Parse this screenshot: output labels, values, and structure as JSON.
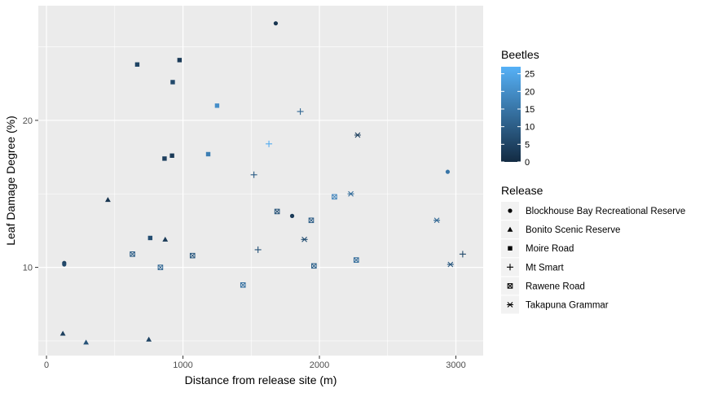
{
  "chart_data": {
    "type": "scatter",
    "xlabel": "Distance from release site (m)",
    "ylabel": "Leaf Damage Degree (%)",
    "xlim": [
      -60,
      3200
    ],
    "ylim": [
      4.0,
      27.8
    ],
    "x_ticks": [
      0,
      1000,
      2000,
      3000
    ],
    "x_tick_labels": [
      "0",
      "1000",
      "2000",
      "3000"
    ],
    "y_ticks": [
      10,
      20
    ],
    "y_tick_labels": [
      "10",
      "20"
    ],
    "grid": true,
    "panel_background": "#EBEBEB",
    "color_scale": {
      "title": "Beetles",
      "min": 0,
      "max": 27,
      "ticks": [
        0,
        5,
        10,
        15,
        20,
        25
      ],
      "tick_labels": [
        "0",
        "5",
        "10",
        "15",
        "20",
        "25"
      ],
      "low_color": "#132B43",
      "high_color": "#56B1F7"
    },
    "shape_legend": {
      "title": "Release",
      "entries": [
        {
          "label": "Blockhouse Bay Recreational Reserve",
          "shape": "circle"
        },
        {
          "label": "Bonito Scenic Reserve",
          "shape": "triangle"
        },
        {
          "label": "Moire Road",
          "shape": "square"
        },
        {
          "label": "Mt Smart",
          "shape": "plus"
        },
        {
          "label": "Rawene Road",
          "shape": "square-cross"
        },
        {
          "label": "Takapuna Grammar",
          "shape": "asterisk"
        }
      ]
    },
    "series": [
      {
        "name": "Blockhouse Bay Recreational Reserve",
        "shape": "circle",
        "points": [
          {
            "x": 1680,
            "y": 26.6,
            "beetles": 2
          },
          {
            "x": 130,
            "y": 10.3,
            "beetles": 4
          },
          {
            "x": 130,
            "y": 10.2,
            "beetles": 6
          },
          {
            "x": 1800,
            "y": 13.5,
            "beetles": 3
          },
          {
            "x": 2940,
            "y": 16.5,
            "beetles": 15
          }
        ]
      },
      {
        "name": "Bonito Scenic Reserve",
        "shape": "triangle",
        "points": [
          {
            "x": 450,
            "y": 14.6,
            "beetles": 2
          },
          {
            "x": 120,
            "y": 5.5,
            "beetles": 4
          },
          {
            "x": 290,
            "y": 4.9,
            "beetles": 8
          },
          {
            "x": 750,
            "y": 5.1,
            "beetles": 5
          },
          {
            "x": 870,
            "y": 11.9,
            "beetles": 3
          }
        ]
      },
      {
        "name": "Moire Road",
        "shape": "square",
        "points": [
          {
            "x": 665,
            "y": 23.8,
            "beetles": 5
          },
          {
            "x": 975,
            "y": 24.1,
            "beetles": 3
          },
          {
            "x": 925,
            "y": 22.6,
            "beetles": 6
          },
          {
            "x": 1250,
            "y": 21.0,
            "beetles": 20
          },
          {
            "x": 1185,
            "y": 17.7,
            "beetles": 17
          },
          {
            "x": 865,
            "y": 17.4,
            "beetles": 4
          },
          {
            "x": 920,
            "y": 17.6,
            "beetles": 3
          },
          {
            "x": 760,
            "y": 12.0,
            "beetles": 7
          }
        ]
      },
      {
        "name": "Mt Smart",
        "shape": "plus",
        "points": [
          {
            "x": 1860,
            "y": 20.6,
            "beetles": 12
          },
          {
            "x": 1630,
            "y": 18.4,
            "beetles": 26
          },
          {
            "x": 1520,
            "y": 16.3,
            "beetles": 10
          },
          {
            "x": 1550,
            "y": 11.2,
            "beetles": 8
          },
          {
            "x": 3050,
            "y": 10.9,
            "beetles": 6
          }
        ]
      },
      {
        "name": "Rawene Road",
        "shape": "square-cross",
        "points": [
          {
            "x": 630,
            "y": 10.9,
            "beetles": 10
          },
          {
            "x": 835,
            "y": 10.0,
            "beetles": 12
          },
          {
            "x": 1070,
            "y": 10.8,
            "beetles": 9
          },
          {
            "x": 1440,
            "y": 8.8,
            "beetles": 14
          },
          {
            "x": 1690,
            "y": 13.8,
            "beetles": 8
          },
          {
            "x": 1940,
            "y": 13.2,
            "beetles": 10
          },
          {
            "x": 1960,
            "y": 10.1,
            "beetles": 11
          },
          {
            "x": 2110,
            "y": 14.8,
            "beetles": 18
          },
          {
            "x": 2270,
            "y": 10.5,
            "beetles": 13
          }
        ]
      },
      {
        "name": "Takapuna Grammar",
        "shape": "asterisk",
        "points": [
          {
            "x": 2280,
            "y": 19.0,
            "beetles": 4
          },
          {
            "x": 2230,
            "y": 15.0,
            "beetles": 13
          },
          {
            "x": 1890,
            "y": 11.9,
            "beetles": 7
          },
          {
            "x": 2860,
            "y": 13.2,
            "beetles": 12
          },
          {
            "x": 2960,
            "y": 10.2,
            "beetles": 9
          }
        ]
      }
    ]
  }
}
